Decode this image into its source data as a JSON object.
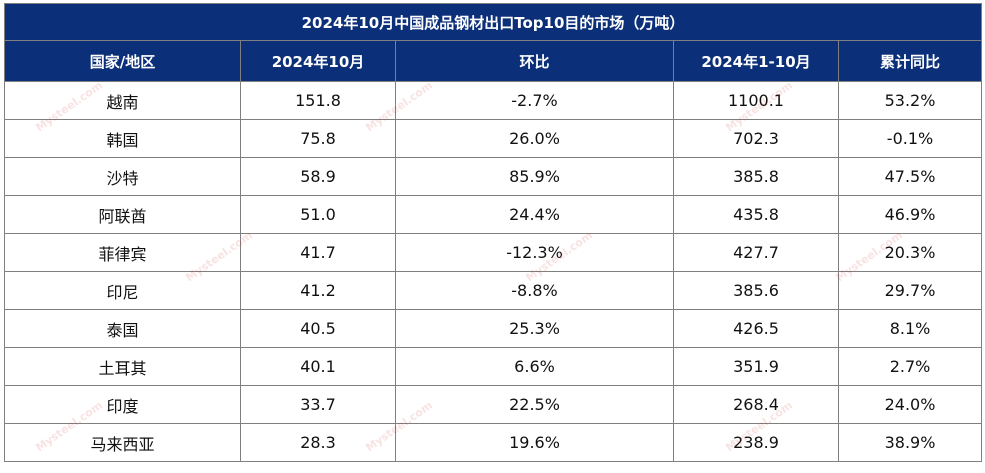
{
  "table": {
    "title": "2024年10月中国成品钢材出口Top10目的市场（万吨）",
    "headers": [
      "国家/地区",
      "2024年10月",
      "环比",
      "2024年1-10月",
      "累计同比"
    ],
    "rows": [
      [
        "越南",
        "151.8",
        "-2.7%",
        "1100.1",
        "53.2%"
      ],
      [
        "韩国",
        "75.8",
        "26.0%",
        "702.3",
        "-0.1%"
      ],
      [
        "沙特",
        "58.9",
        "85.9%",
        "385.8",
        "47.5%"
      ],
      [
        "阿联酋",
        "51.0",
        "24.4%",
        "435.8",
        "46.9%"
      ],
      [
        "菲律宾",
        "41.7",
        "-12.3%",
        "427.7",
        "20.3%"
      ],
      [
        "印尼",
        "41.2",
        "-8.8%",
        "385.6",
        "29.7%"
      ],
      [
        "泰国",
        "40.5",
        "25.3%",
        "426.5",
        "8.1%"
      ],
      [
        "土耳其",
        "40.1",
        "6.6%",
        "351.9",
        "2.7%"
      ],
      [
        "印度",
        "33.7",
        "22.5%",
        "268.4",
        "24.0%"
      ],
      [
        "马来西亚",
        "28.3",
        "19.6%",
        "238.9",
        "38.9%"
      ]
    ]
  },
  "colors": {
    "header_bg": "#0b2f78",
    "header_text": "#ffffff",
    "border": "#7f7f7f",
    "watermark": "#c82828"
  },
  "watermark": {
    "text": "Mysteel.com"
  }
}
